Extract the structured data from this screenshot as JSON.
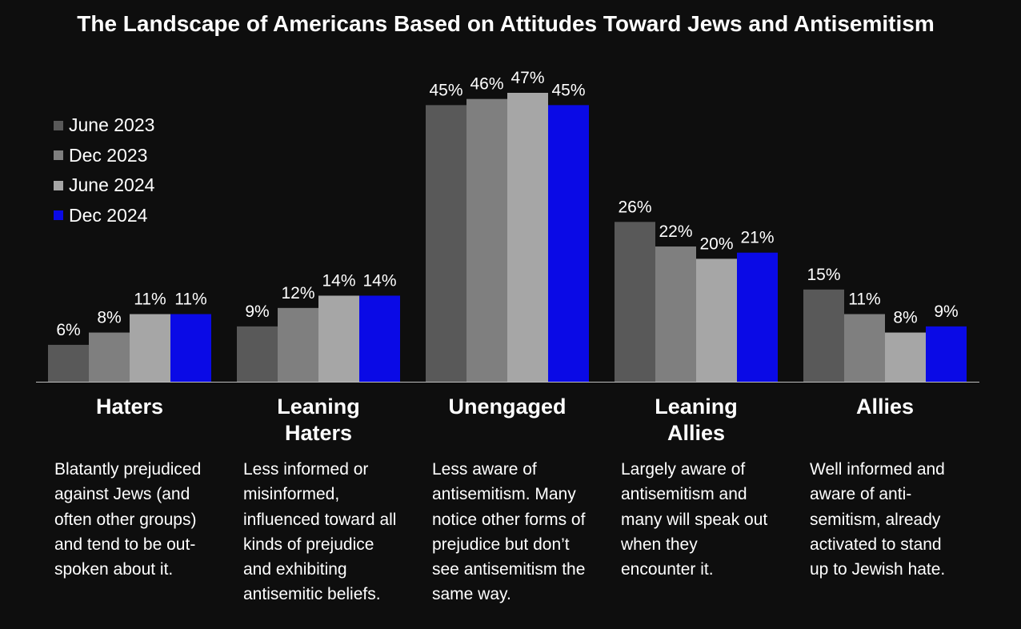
{
  "chart_data": {
    "type": "bar",
    "title": "The Landscape of Americans Based on Attitudes Toward Jews and Antisemitism",
    "categories": [
      "Haters",
      "Leaning Haters",
      "Unengaged",
      "Leaning Allies",
      "Allies"
    ],
    "category_labels": [
      [
        "Haters"
      ],
      [
        "Leaning",
        "Haters"
      ],
      [
        "Unengaged"
      ],
      [
        "Leaning",
        "Allies"
      ],
      [
        "Allies"
      ]
    ],
    "descriptions": [
      [
        "Blatantly prejudiced",
        "against Jews (and",
        "often other groups)",
        "and tend to be out-",
        "spoken about it."
      ],
      [
        "Less informed or",
        "misinformed,",
        "influenced toward all",
        "kinds of prejudice",
        "and exhibiting",
        "antisemitic beliefs."
      ],
      [
        "Less aware of",
        "antisemitism. Many",
        "notice other forms of",
        "prejudice but don’t",
        "see antisemitism the",
        "same way."
      ],
      [
        "Largely aware of",
        "antisemitism and",
        "many will speak out",
        "when they",
        "encounter it."
      ],
      [
        "Well informed and",
        "aware of anti-",
        "semitism, already",
        "activated to stand",
        "up to Jewish hate."
      ]
    ],
    "series": [
      {
        "name": "June 2023",
        "color": "#595959",
        "values": [
          6,
          9,
          45,
          26,
          15
        ]
      },
      {
        "name": "Dec 2023",
        "color": "#7f7f7f",
        "values": [
          8,
          12,
          46,
          22,
          11
        ]
      },
      {
        "name": "June 2024",
        "color": "#a6a6a6",
        "values": [
          11,
          14,
          47,
          20,
          8
        ]
      },
      {
        "name": "Dec 2024",
        "color": "#0a0ae6",
        "values": [
          11,
          14,
          45,
          21,
          9
        ]
      }
    ],
    "value_suffix": "%",
    "ylim": [
      0,
      47
    ],
    "legend_position": "top-left",
    "grid": false
  },
  "colors": {
    "background": "#0e0e0e",
    "text": "#ffffff",
    "axis": "#bfbfbf"
  }
}
